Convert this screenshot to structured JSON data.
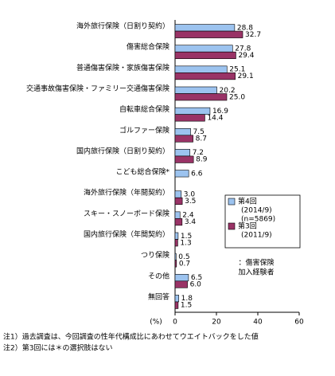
{
  "chart_data": {
    "type": "bar",
    "orientation": "horizontal",
    "categories": [
      "海外旅行保険（日割り契約）",
      "傷害総合保険",
      "普通傷害保険・家族傷害保険",
      "交通事故傷害保険・ファミリー交通傷害保険",
      "自転車総合保険",
      "ゴルファー保険",
      "国内旅行保険（日割り契約）",
      "こども総合保険*",
      "海外旅行保険（年間契約）",
      "スキー・スノーボード保険",
      "国内旅行保険（年間契約）",
      "つり保険",
      "その他",
      "無回答"
    ],
    "series": [
      {
        "name": "第4回",
        "period": "(2014/9)",
        "sample": "(n=5869)",
        "color": "#9cc3ef",
        "values": [
          28.8,
          27.8,
          25.1,
          20.2,
          16.9,
          7.5,
          7.2,
          6.6,
          3.0,
          2.4,
          1.5,
          0.5,
          6.5,
          1.8
        ],
        "value_labels": [
          "28.8",
          "27.8",
          "25.1",
          "20.2",
          "16.9",
          "7.5",
          "7.2",
          "6.6",
          "3.0",
          "2.4",
          "1.5",
          "0.5",
          "6.5",
          "1.8"
        ]
      },
      {
        "name": "第3回",
        "period": "(2011/9)",
        "color": "#993366",
        "values": [
          32.7,
          29.4,
          29.1,
          25.0,
          14.4,
          8.7,
          8.9,
          null,
          3.5,
          3.4,
          1.3,
          0.7,
          6.0,
          1.5
        ],
        "value_labels": [
          "32.7",
          "29.4",
          "29.1",
          "25.0",
          "14.4",
          "8.7",
          "8.9",
          null,
          "3.5",
          "3.4",
          "1.3",
          "0.7",
          "6.0",
          "1.5"
        ]
      }
    ],
    "xlim": [
      0,
      60
    ],
    "xticks": [
      0,
      20,
      40,
      60
    ],
    "x_unit": "(%)",
    "annotation": [
      "：傷害保険",
      "加入経験者"
    ],
    "notes": [
      "注1）過去調査は、今回調査の性年代構成比にあわせてウエイトバックをした値",
      "注2）第3回には＊の選択肢はない"
    ]
  }
}
